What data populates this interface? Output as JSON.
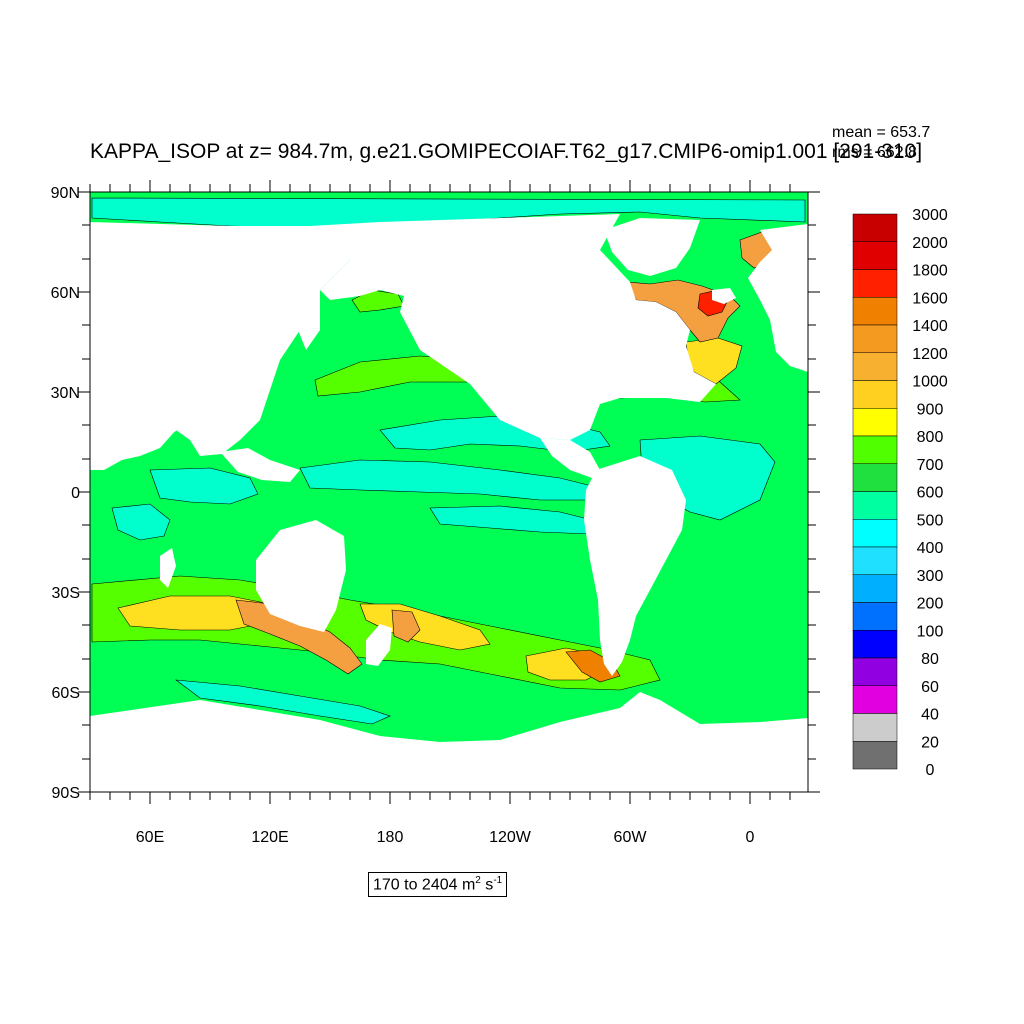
{
  "title": "KAPPA_ISOP at z= 984.7m, g.e21.GOMIPECOIAF.T62_g17.CMIP6-omip1.001 [291-310]",
  "stats": {
    "mean": "mean = 653.7",
    "rms": "rms = 662.8"
  },
  "range": {
    "text": "170 to 2404 m",
    "unit_sup1": "2",
    "unit_mid": " s",
    "unit_sup2": "-1"
  },
  "axes": {
    "y_labels": [
      "90N",
      "60N",
      "30N",
      "0",
      "30S",
      "60S",
      "90S"
    ],
    "x_labels": [
      "60E",
      "120E",
      "180",
      "120W",
      "60W",
      "0"
    ]
  },
  "colorbar": {
    "labels": [
      "3000",
      "2000",
      "1800",
      "1600",
      "1400",
      "1200",
      "1000",
      "900",
      "800",
      "700",
      "600",
      "500",
      "400",
      "300",
      "200",
      "100",
      "80",
      "60",
      "40",
      "20",
      "0"
    ],
    "colors": [
      "#c80000",
      "#e00000",
      "#ff2000",
      "#f08000",
      "#f59a20",
      "#f7b030",
      "#ffd020",
      "#ffff00",
      "#50ff00",
      "#20e040",
      "#00ffa0",
      "#00ffff",
      "#20e0ff",
      "#00b0ff",
      "#0070ff",
      "#0000ff",
      "#9000e0",
      "#e000e0",
      "#cccccc",
      "#707070"
    ]
  },
  "colors": {
    "ocean_base": "#00ff55",
    "low": "#00ffcc",
    "mid": "#55ff00",
    "high_yellow": "#ffe020",
    "high_orange": "#f5a040",
    "peak": "#f08000",
    "land": "#ffffff"
  }
}
